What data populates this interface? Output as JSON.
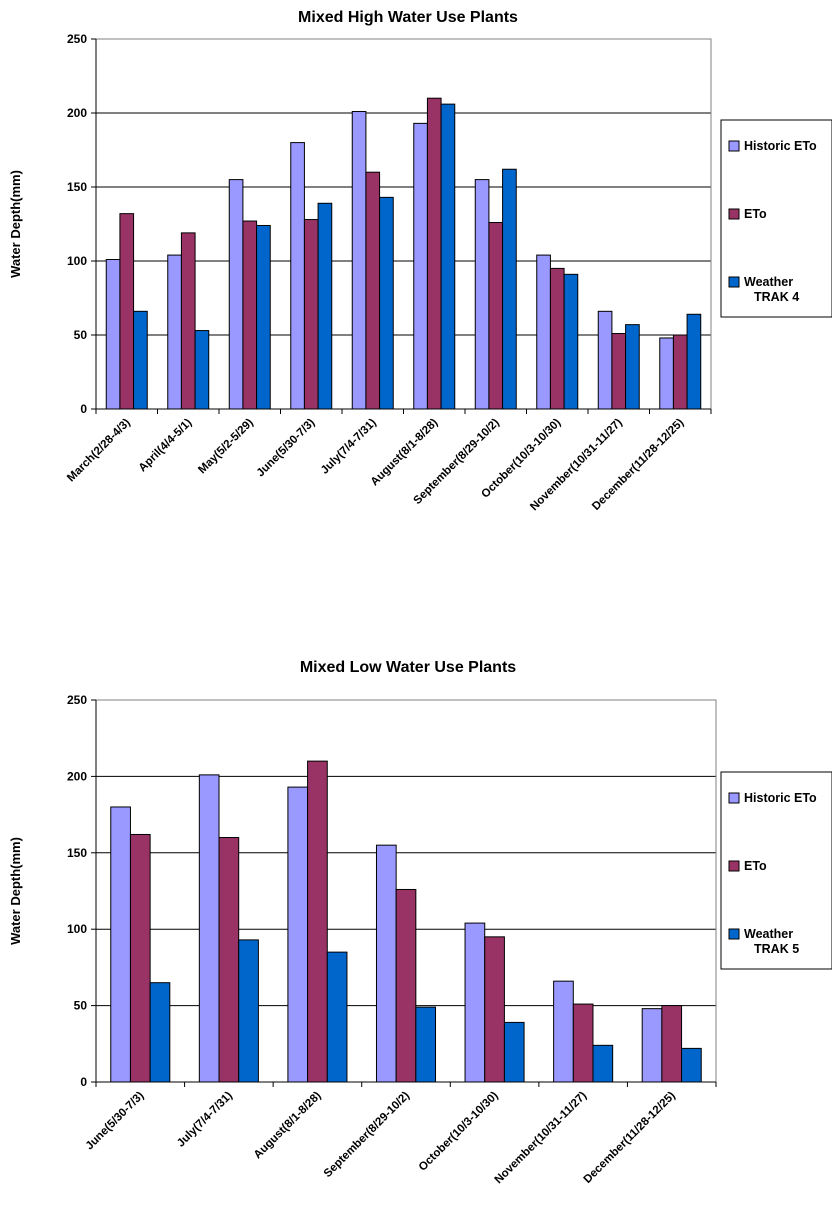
{
  "chart_data": [
    {
      "type": "bar",
      "title": "Mixed High Water Use Plants",
      "xlabel": "",
      "ylabel": "Water Depth(mm)",
      "ylim": [
        0,
        250
      ],
      "yticks": [
        0,
        50,
        100,
        150,
        200,
        250
      ],
      "grid": true,
      "legend": "right",
      "categories": [
        "March(2/28-4/3)",
        "April(4/4-5/1)",
        "May(5/2-5/29)",
        "June(5/30-7/3)",
        "July(7/4-7/31)",
        "August(8/1-8/28)",
        "September(8/29-10/2)",
        "October(10/3-10/30)",
        "November(10/31-11/27)",
        "December(11/28-12/25)"
      ],
      "series": [
        {
          "name": "Historic ETo",
          "color": "#9999ff",
          "values": [
            101,
            104,
            155,
            180,
            201,
            193,
            155,
            104,
            66,
            48
          ]
        },
        {
          "name": "ETo",
          "color": "#993366",
          "values": [
            132,
            119,
            127,
            128,
            160,
            210,
            126,
            95,
            51,
            50
          ]
        },
        {
          "name": "Weather TRAK 4",
          "color": "#0066cc",
          "values": [
            66,
            53,
            124,
            139,
            143,
            206,
            162,
            91,
            57,
            64
          ]
        }
      ]
    },
    {
      "type": "bar",
      "title": "Mixed Low Water Use Plants",
      "xlabel": "",
      "ylabel": "Water Depth(mm)",
      "ylim": [
        0,
        250
      ],
      "yticks": [
        0,
        50,
        100,
        150,
        200,
        250
      ],
      "grid": true,
      "legend": "right",
      "categories": [
        "June(5/30-7/3)",
        "July(7/4-7/31)",
        "August(8/1-8/28)",
        "September(8/29-10/2)",
        "October(10/3-10/30)",
        "November(10/31-11/27)",
        "December(11/28-12/25)"
      ],
      "series": [
        {
          "name": "Historic ETo",
          "color": "#9999ff",
          "values": [
            180,
            201,
            193,
            155,
            104,
            66,
            48
          ]
        },
        {
          "name": "ETo",
          "color": "#993366",
          "values": [
            162,
            160,
            210,
            126,
            95,
            51,
            50
          ]
        },
        {
          "name": "Weather TRAK 5",
          "color": "#0066cc",
          "values": [
            65,
            93,
            85,
            49,
            39,
            24,
            22
          ]
        }
      ]
    }
  ]
}
